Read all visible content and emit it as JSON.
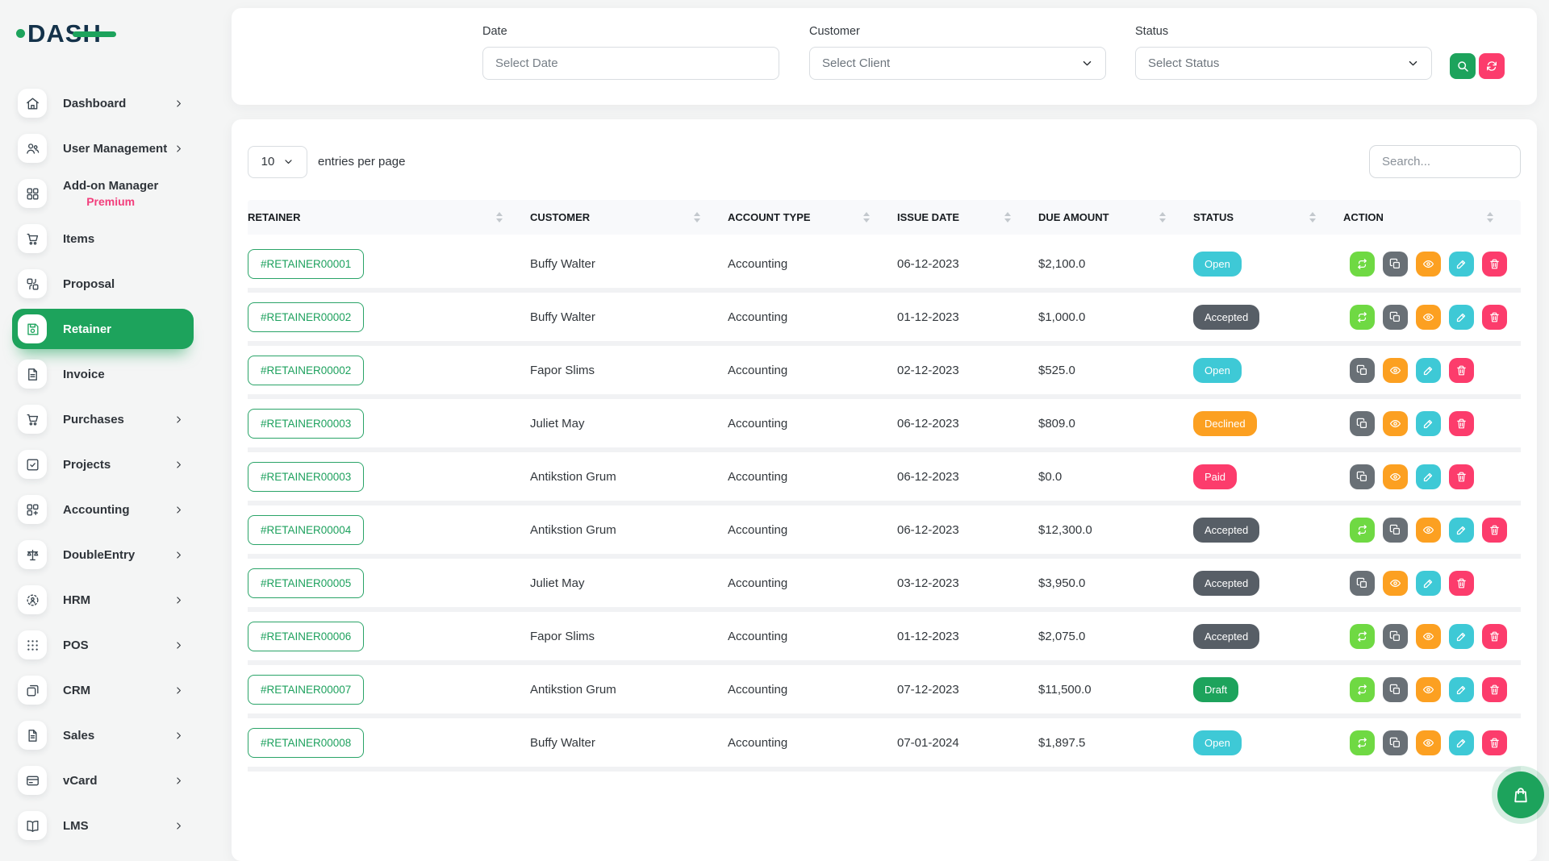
{
  "brand": {
    "name": "DASH"
  },
  "sidebar": {
    "items": [
      {
        "label": "Dashboard",
        "icon": "home-icon",
        "chevron": true,
        "active": false
      },
      {
        "label": "User Management",
        "icon": "users-icon",
        "chevron": true,
        "active": false
      },
      {
        "label": "Add-on Manager",
        "sublabel": "Premium",
        "icon": "grid-icon",
        "chevron": false,
        "active": false
      },
      {
        "label": "Items",
        "icon": "cart-icon",
        "chevron": false,
        "active": false
      },
      {
        "label": "Proposal",
        "icon": "proposal-icon",
        "chevron": false,
        "active": false
      },
      {
        "label": "Retainer",
        "icon": "save-icon",
        "chevron": false,
        "active": true
      },
      {
        "label": "Invoice",
        "icon": "invoice-icon",
        "chevron": false,
        "active": false
      },
      {
        "label": "Purchases",
        "icon": "cart-icon",
        "chevron": true,
        "active": false
      },
      {
        "label": "Projects",
        "icon": "check-square-icon",
        "chevron": true,
        "active": false
      },
      {
        "label": "Accounting",
        "icon": "accounting-icon",
        "chevron": true,
        "active": false
      },
      {
        "label": "DoubleEntry",
        "icon": "scales-icon",
        "chevron": true,
        "active": false
      },
      {
        "label": "HRM",
        "icon": "hrm-icon",
        "chevron": true,
        "active": false
      },
      {
        "label": "POS",
        "icon": "pos-icon",
        "chevron": true,
        "active": false
      },
      {
        "label": "CRM",
        "icon": "crm-icon",
        "chevron": true,
        "active": false
      },
      {
        "label": "Sales",
        "icon": "sales-icon",
        "chevron": true,
        "active": false
      },
      {
        "label": "vCard",
        "icon": "vcard-icon",
        "chevron": true,
        "active": false
      },
      {
        "label": "LMS",
        "icon": "lms-icon",
        "chevron": true,
        "active": false
      }
    ]
  },
  "filters": {
    "date_label": "Date",
    "date_placeholder": "Select Date",
    "customer_label": "Customer",
    "customer_value": "Select Client",
    "status_label": "Status",
    "status_value": "Select Status"
  },
  "controls": {
    "entries_value": "10",
    "entries_label": "entries per page",
    "search_placeholder": "Search..."
  },
  "table": {
    "columns": [
      "RETAINER",
      "CUSTOMER",
      "ACCOUNT TYPE",
      "ISSUE DATE",
      "DUE AMOUNT",
      "STATUS",
      "ACTION"
    ],
    "rows": [
      {
        "retainer": "#RETAINER00001",
        "customer": "Buffy Walter",
        "account_type": "Accounting",
        "issue_date": "06-12-2023",
        "due_amount": "$2,100.0",
        "status": "Open",
        "actions": [
          "convert",
          "duplicate",
          "view",
          "edit",
          "delete"
        ]
      },
      {
        "retainer": "#RETAINER00002",
        "customer": "Buffy Walter",
        "account_type": "Accounting",
        "issue_date": "01-12-2023",
        "due_amount": "$1,000.0",
        "status": "Accepted",
        "actions": [
          "convert",
          "duplicate",
          "view",
          "edit",
          "delete"
        ]
      },
      {
        "retainer": "#RETAINER00002",
        "customer": "Fapor Slims",
        "account_type": "Accounting",
        "issue_date": "02-12-2023",
        "due_amount": "$525.0",
        "status": "Open",
        "actions": [
          "duplicate",
          "view",
          "edit",
          "delete"
        ]
      },
      {
        "retainer": "#RETAINER00003",
        "customer": "Juliet May",
        "account_type": "Accounting",
        "issue_date": "06-12-2023",
        "due_amount": "$809.0",
        "status": "Declined",
        "actions": [
          "duplicate",
          "view",
          "edit",
          "delete"
        ]
      },
      {
        "retainer": "#RETAINER00003",
        "customer": "Antikstion Grum",
        "account_type": "Accounting",
        "issue_date": "06-12-2023",
        "due_amount": "$0.0",
        "status": "Paid",
        "actions": [
          "duplicate",
          "view",
          "edit",
          "delete"
        ]
      },
      {
        "retainer": "#RETAINER00004",
        "customer": "Antikstion Grum",
        "account_type": "Accounting",
        "issue_date": "06-12-2023",
        "due_amount": "$12,300.0",
        "status": "Accepted",
        "actions": [
          "convert",
          "duplicate",
          "view",
          "edit",
          "delete"
        ]
      },
      {
        "retainer": "#RETAINER00005",
        "customer": "Juliet May",
        "account_type": "Accounting",
        "issue_date": "03-12-2023",
        "due_amount": "$3,950.0",
        "status": "Accepted",
        "actions": [
          "duplicate",
          "view",
          "edit",
          "delete"
        ]
      },
      {
        "retainer": "#RETAINER00006",
        "customer": "Fapor Slims",
        "account_type": "Accounting",
        "issue_date": "01-12-2023",
        "due_amount": "$2,075.0",
        "status": "Accepted",
        "actions": [
          "convert",
          "duplicate",
          "view",
          "edit",
          "delete"
        ]
      },
      {
        "retainer": "#RETAINER00007",
        "customer": "Antikstion Grum",
        "account_type": "Accounting",
        "issue_date": "07-12-2023",
        "due_amount": "$11,500.0",
        "status": "Draft",
        "actions": [
          "convert",
          "duplicate",
          "view",
          "edit",
          "delete"
        ]
      },
      {
        "retainer": "#RETAINER00008",
        "customer": "Buffy Walter",
        "account_type": "Accounting",
        "issue_date": "07-01-2024",
        "due_amount": "$1,897.5",
        "status": "Open",
        "actions": [
          "convert",
          "duplicate",
          "view",
          "edit",
          "delete"
        ]
      }
    ]
  },
  "colors": {
    "brand_green": "#1da35c",
    "pink": "#fc3c6c",
    "premium_pink": "#f23e7c",
    "status": {
      "Open": "#3ec9d6",
      "Accepted": "#575e66",
      "Declined": "#fca021",
      "Paid": "#fc3c6c",
      "Draft": "#1da35c"
    },
    "action": {
      "convert": "#6fd943",
      "duplicate": "#697076",
      "view": "#fca021",
      "edit": "#3ec9d6",
      "delete": "#fc3c6c"
    }
  }
}
